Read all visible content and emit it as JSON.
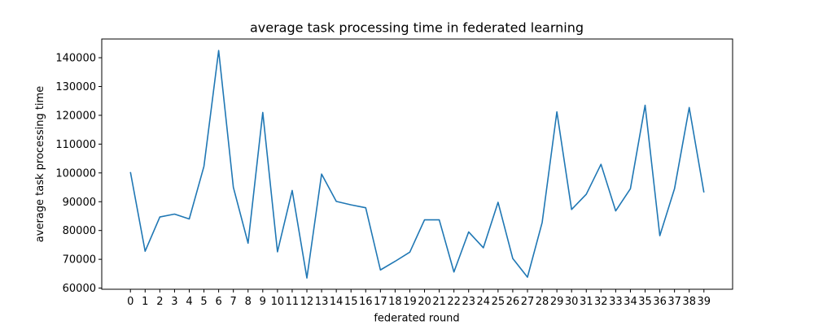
{
  "chart_data": {
    "type": "line",
    "title": "average task processing time in federated learning",
    "xlabel": "federated round",
    "ylabel": "average task processing time",
    "x": [
      0,
      1,
      2,
      3,
      4,
      5,
      6,
      7,
      8,
      9,
      10,
      11,
      12,
      13,
      14,
      15,
      16,
      17,
      18,
      19,
      20,
      21,
      22,
      23,
      24,
      25,
      26,
      27,
      28,
      29,
      30,
      31,
      32,
      33,
      34,
      35,
      36,
      37,
      38,
      39
    ],
    "series": [
      {
        "values": [
          100300,
          72800,
          84700,
          85700,
          84000,
          102300,
          142500,
          95000,
          75600,
          121000,
          72600,
          93900,
          63500,
          99600,
          90100,
          88900,
          87900,
          66300,
          69300,
          72500,
          83700,
          83700,
          65600,
          79500,
          74000,
          89800,
          70300,
          63800,
          82800,
          121200,
          87300,
          92600,
          103000,
          86800,
          94500,
          123500,
          78200,
          94500,
          122700,
          93200
        ],
        "color": "#1f77b4"
      }
    ],
    "yticks": [
      60000,
      70000,
      80000,
      90000,
      100000,
      110000,
      120000,
      130000,
      140000
    ],
    "ylim": [
      59600,
      146500
    ],
    "xlim": [
      -1.95,
      40.95
    ],
    "grid": false
  }
}
